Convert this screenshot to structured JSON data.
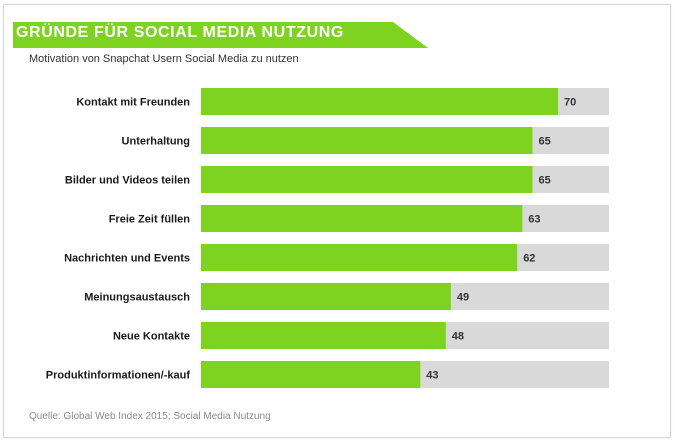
{
  "header": {
    "title": "GRÜNDE FÜR SOCIAL MEDIA NUTZUNG",
    "subtitle": "Motivation von Snapchat Usern Social Media zu nutzen"
  },
  "footer": {
    "source": "Quelle: Global Web Index 2015; Social Media Nutzung"
  },
  "colors": {
    "bar": "#7ed321",
    "track": "#d9d9d9",
    "banner": "#7ed321"
  },
  "chart_data": {
    "type": "bar",
    "orientation": "horizontal",
    "title": "GRÜNDE FÜR SOCIAL MEDIA NUTZUNG",
    "subtitle": "Motivation von Snapchat Usern Social Media zu nutzen",
    "categories": [
      "Kontakt mit Freunden",
      "Unterhaltung",
      "Bilder und Videos teilen",
      "Freie Zeit füllen",
      "Nachrichten und Events",
      "Meinungsaustausch",
      "Neue Kontakte",
      "Produktinformationen/-kauf"
    ],
    "values": [
      70,
      65,
      65,
      63,
      62,
      49,
      48,
      43
    ],
    "xlim": [
      0,
      80
    ],
    "grid": false,
    "legend": "none"
  }
}
